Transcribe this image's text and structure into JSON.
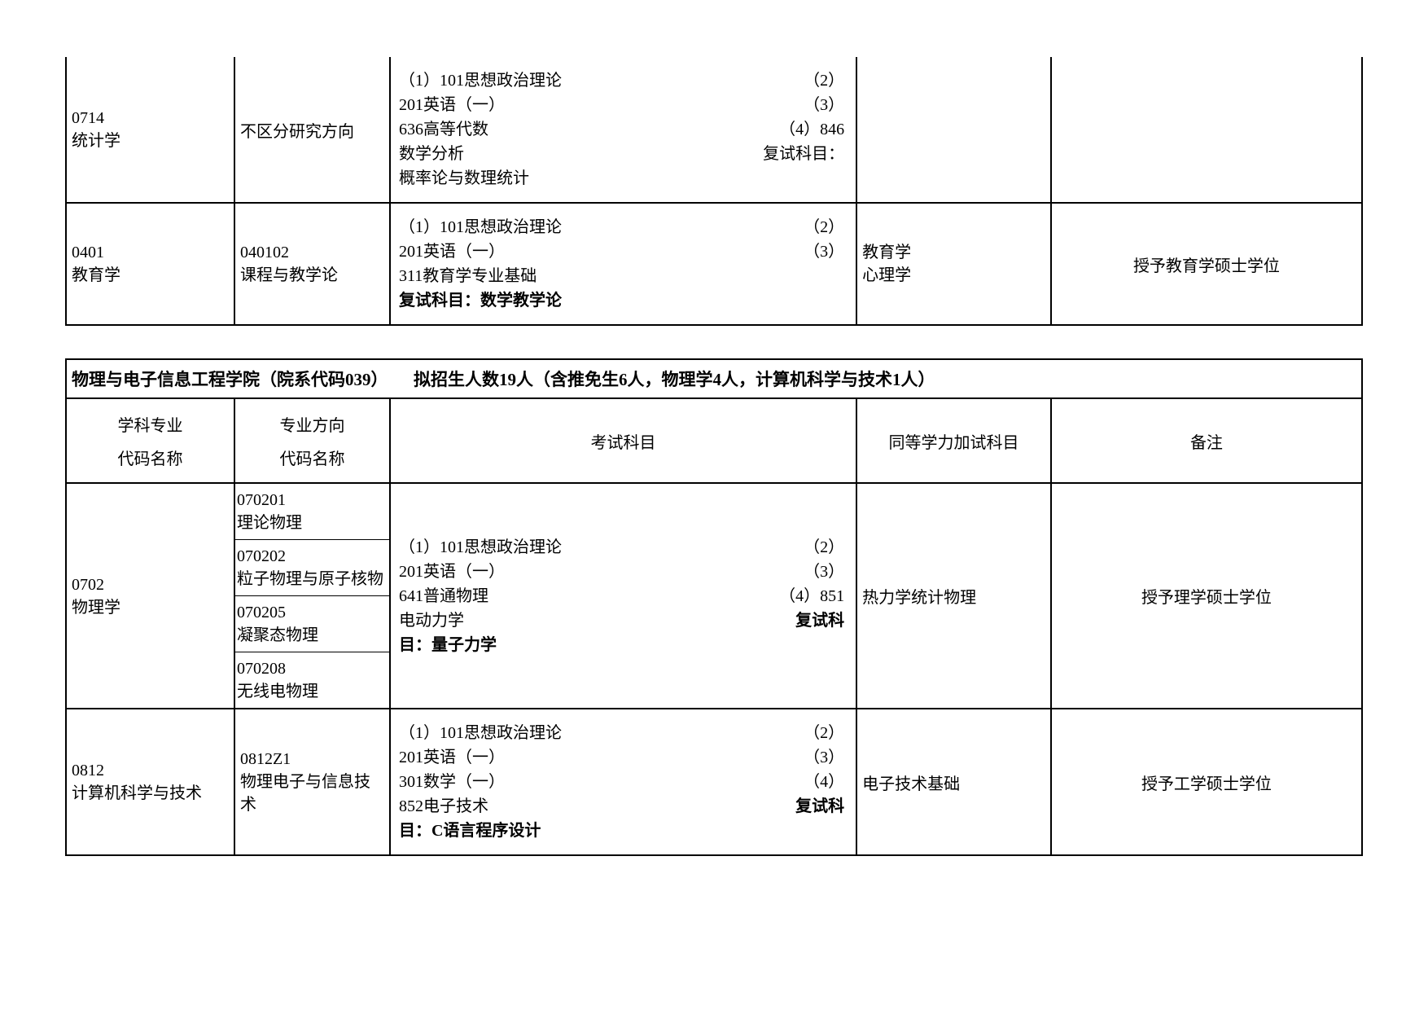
{
  "table1": {
    "rows": [
      {
        "code": "0714\n统计学",
        "direction": "不区分研究方向",
        "exam_left": "（1）101思想政治理论\n201英语（一）\n636高等代数\n数学分析\n概率论与数理统计",
        "exam_right": "（2）\n（3）\n（4）846\n复试科目：",
        "equiv": "",
        "remark": ""
      },
      {
        "code": "0401\n教育学",
        "direction": "040102\n课程与教学论",
        "exam_left": "（1）101思想政治理论\n201英语（一）\n311教育学专业基础\n复试科目：数学教学论",
        "exam_right": "（2）\n（3）",
        "equiv": "教育学\n心理学",
        "remark": "授予教育学硕士学位"
      }
    ]
  },
  "table2": {
    "header": "物理与电子信息工程学院（院系代码039）　　拟招生人数19人（含推免生6人，物理学4人，计算机科学与技术1人）",
    "col_headers": {
      "c1a": "学科专业",
      "c1b": "代码名称",
      "c2a": "专业方向",
      "c2b": "代码名称",
      "c3": "考试科目",
      "c4": "同等学力加试科目",
      "c5": "备注"
    },
    "physics": {
      "code": "0702\n物理学",
      "dirs": [
        "070201\n理论物理",
        "070202\n粒子物理与原子核物",
        "070205\n凝聚态物理",
        "070208\n无线电物理"
      ],
      "exam_left": "（1）101思想政治理论\n201英语（一）\n641普通物理\n电动力学\n目：量子力学",
      "exam_right": "（2）\n（3）\n（4）851\n复试科",
      "equiv": "热力学统计物理",
      "remark": "授予理学硕士学位"
    },
    "cs": {
      "code": "0812\n计算机科学与技术",
      "direction": "0812Z1\n物理电子与信息技术",
      "exam_left": "（1）101思想政治理论\n201英语（一）\n301数学（一）\n852电子技术\n目：C语言程序设计",
      "exam_right": "（2）\n（3）\n（4）\n复试科",
      "equiv": "电子技术基础",
      "remark": "授予工学硕士学位"
    }
  }
}
